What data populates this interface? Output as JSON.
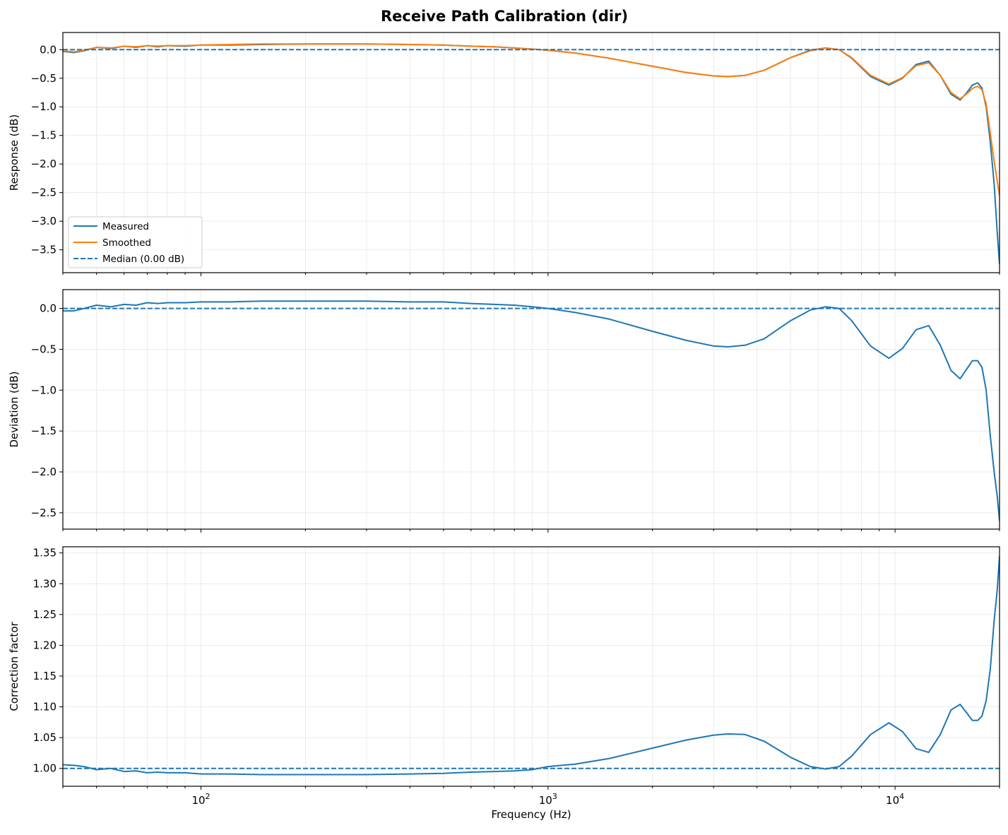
{
  "figure_title": "Receive Path Calibration (dir)",
  "colors": {
    "measured": "#1f77b4",
    "smoothed": "#ff7f0e",
    "median": "#1f77b4",
    "grid": "#b0b0b0"
  },
  "chart_data": [
    {
      "type": "line",
      "xscale": "log",
      "xlim": [
        40,
        20000
      ],
      "ylim": [
        -3.9,
        0.3
      ],
      "yticks": [
        0.0,
        -0.5,
        -1.0,
        -1.5,
        -2.0,
        -2.5,
        -3.0,
        -3.5
      ],
      "ytick_labels": [
        "0.0",
        "−0.5",
        "−1.0",
        "−1.5",
        "−2.0",
        "−2.5",
        "−3.0",
        "−3.5"
      ],
      "ylabel": "Response (dB)",
      "grid": true,
      "legend": {
        "placement": "lower-left",
        "entries": [
          "Measured",
          "Smoothed",
          "Median (0.00 dB)"
        ]
      },
      "series": [
        {
          "name": "Measured",
          "style": "solid",
          "x": [
            40,
            43,
            46,
            50,
            55,
            60,
            65,
            70,
            75,
            80,
            90,
            100,
            120,
            150,
            200,
            250,
            300,
            400,
            500,
            600,
            700,
            800,
            900,
            1000,
            1200,
            1500,
            2000,
            2500,
            3000,
            3300,
            3700,
            4200,
            5000,
            5700,
            6300,
            6900,
            7500,
            8500,
            9600,
            10500,
            11500,
            12500,
            13500,
            14500,
            15400,
            16100,
            16700,
            17300,
            17800,
            18300,
            18800,
            19300,
            19700,
            20000
          ],
          "y": [
            -0.03,
            -0.05,
            -0.02,
            0.04,
            0.02,
            0.06,
            0.04,
            0.07,
            0.05,
            0.07,
            0.06,
            0.08,
            0.08,
            0.09,
            0.1,
            0.1,
            0.1,
            0.09,
            0.08,
            0.06,
            0.05,
            0.03,
            0.01,
            -0.01,
            -0.06,
            -0.15,
            -0.29,
            -0.4,
            -0.46,
            -0.47,
            -0.45,
            -0.36,
            -0.14,
            -0.01,
            0.03,
            0.0,
            -0.15,
            -0.47,
            -0.62,
            -0.5,
            -0.26,
            -0.2,
            -0.45,
            -0.78,
            -0.88,
            -0.75,
            -0.62,
            -0.58,
            -0.67,
            -1.0,
            -1.6,
            -2.35,
            -3.2,
            -3.75
          ]
        },
        {
          "name": "Smoothed",
          "style": "solid",
          "x": [
            40,
            43,
            46,
            50,
            55,
            60,
            65,
            70,
            75,
            80,
            90,
            100,
            120,
            150,
            200,
            250,
            300,
            400,
            500,
            600,
            700,
            800,
            900,
            1000,
            1200,
            1500,
            2000,
            2500,
            3000,
            3300,
            3700,
            4200,
            5000,
            5700,
            6300,
            6900,
            7500,
            8500,
            9600,
            10500,
            11500,
            12500,
            13500,
            14500,
            15400,
            16100,
            16700,
            17300,
            17800,
            18300,
            18800,
            19300,
            19700,
            20000
          ],
          "y": [
            -0.02,
            -0.04,
            -0.01,
            0.04,
            0.03,
            0.06,
            0.05,
            0.07,
            0.06,
            0.07,
            0.07,
            0.08,
            0.09,
            0.1,
            0.1,
            0.1,
            0.1,
            0.09,
            0.08,
            0.06,
            0.05,
            0.03,
            0.01,
            -0.01,
            -0.06,
            -0.15,
            -0.29,
            -0.4,
            -0.46,
            -0.47,
            -0.45,
            -0.36,
            -0.14,
            -0.02,
            0.03,
            0.0,
            -0.14,
            -0.45,
            -0.6,
            -0.49,
            -0.28,
            -0.23,
            -0.45,
            -0.75,
            -0.86,
            -0.77,
            -0.68,
            -0.64,
            -0.7,
            -0.95,
            -1.45,
            -1.95,
            -2.3,
            -2.55
          ]
        },
        {
          "name": "Median (0.00 dB)",
          "style": "dashed",
          "x": [
            40,
            20000
          ],
          "y": [
            0.0,
            0.0
          ]
        }
      ]
    },
    {
      "type": "line",
      "xscale": "log",
      "xlim": [
        40,
        20000
      ],
      "ylim": [
        -2.7,
        0.23
      ],
      "yticks": [
        0.0,
        -0.5,
        -1.0,
        -1.5,
        -2.0,
        -2.5
      ],
      "ytick_labels": [
        "0.0",
        "−0.5",
        "−1.0",
        "−1.5",
        "−2.0",
        "−2.5"
      ],
      "ylabel": "Deviation (dB)",
      "grid": true,
      "series": [
        {
          "style": "solid",
          "x": [
            40,
            43,
            46,
            50,
            55,
            60,
            65,
            70,
            75,
            80,
            90,
            100,
            120,
            150,
            200,
            250,
            300,
            400,
            500,
            600,
            700,
            800,
            900,
            1000,
            1200,
            1500,
            2000,
            2500,
            3000,
            3300,
            3700,
            4200,
            5000,
            5700,
            6300,
            6900,
            7500,
            8500,
            9600,
            10500,
            11500,
            12500,
            13500,
            14500,
            15400,
            16100,
            16700,
            17300,
            17800,
            18300,
            18800,
            19300,
            19700,
            20000
          ],
          "y": [
            -0.03,
            -0.03,
            0.0,
            0.04,
            0.02,
            0.05,
            0.04,
            0.07,
            0.06,
            0.07,
            0.07,
            0.08,
            0.08,
            0.09,
            0.09,
            0.09,
            0.09,
            0.08,
            0.08,
            0.06,
            0.05,
            0.04,
            0.02,
            0.0,
            -0.05,
            -0.13,
            -0.28,
            -0.39,
            -0.46,
            -0.47,
            -0.45,
            -0.37,
            -0.15,
            -0.02,
            0.02,
            0.0,
            -0.15,
            -0.46,
            -0.61,
            -0.49,
            -0.26,
            -0.21,
            -0.45,
            -0.76,
            -0.86,
            -0.74,
            -0.64,
            -0.64,
            -0.72,
            -1.0,
            -1.55,
            -2.0,
            -2.3,
            -2.6
          ]
        },
        {
          "style": "dashed",
          "x": [
            40,
            20000
          ],
          "y": [
            0.0,
            0.0
          ]
        }
      ]
    },
    {
      "type": "line",
      "xscale": "log",
      "xlim": [
        40,
        20000
      ],
      "ylim": [
        0.971,
        1.36
      ],
      "yticks": [
        1.0,
        1.05,
        1.1,
        1.15,
        1.2,
        1.25,
        1.3,
        1.35
      ],
      "ytick_labels": [
        "1.00",
        "1.05",
        "1.10",
        "1.15",
        "1.20",
        "1.25",
        "1.30",
        "1.35"
      ],
      "ylabel": "Correction factor",
      "xlabel": "Frequency (Hz)",
      "xticks": [
        100,
        1000,
        10000
      ],
      "xtick_labels": [
        [
          "10",
          "2"
        ],
        [
          "10",
          "3"
        ],
        [
          "10",
          "4"
        ]
      ],
      "grid": true,
      "series": [
        {
          "style": "solid",
          "x": [
            40,
            43,
            46,
            50,
            55,
            60,
            65,
            70,
            75,
            80,
            90,
            100,
            120,
            150,
            200,
            250,
            300,
            400,
            500,
            600,
            700,
            800,
            900,
            1000,
            1200,
            1500,
            2000,
            2500,
            3000,
            3300,
            3700,
            4200,
            5000,
            5700,
            6300,
            6900,
            7500,
            8500,
            9600,
            10500,
            11500,
            12500,
            13500,
            14500,
            15400,
            16100,
            16700,
            17300,
            17800,
            18300,
            18800,
            19300,
            19700,
            20000
          ],
          "y": [
            1.006,
            1.005,
            1.003,
            0.998,
            1.0,
            0.995,
            0.996,
            0.993,
            0.994,
            0.993,
            0.993,
            0.991,
            0.991,
            0.99,
            0.99,
            0.99,
            0.99,
            0.991,
            0.992,
            0.994,
            0.995,
            0.996,
            0.998,
            1.003,
            1.007,
            1.016,
            1.033,
            1.046,
            1.054,
            1.056,
            1.055,
            1.044,
            1.018,
            1.003,
            0.999,
            1.003,
            1.02,
            1.055,
            1.074,
            1.06,
            1.032,
            1.026,
            1.055,
            1.095,
            1.104,
            1.09,
            1.078,
            1.078,
            1.085,
            1.11,
            1.16,
            1.24,
            1.29,
            1.345
          ]
        },
        {
          "style": "dashed",
          "x": [
            40,
            20000
          ],
          "y": [
            1.0,
            1.0
          ]
        }
      ]
    }
  ]
}
